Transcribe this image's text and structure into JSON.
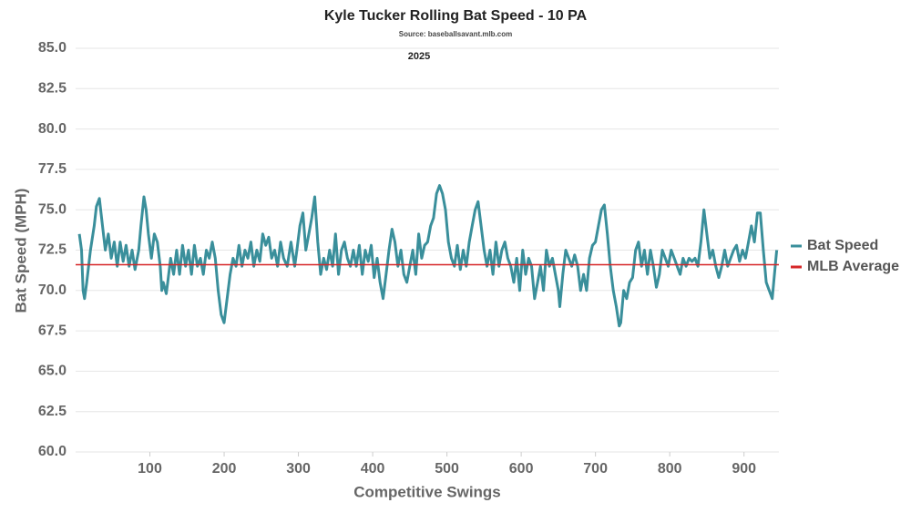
{
  "chart_data": {
    "type": "line",
    "title": "Kyle Tucker Rolling Bat Speed - 10 PA",
    "subtitle": "Source: baseballsavant.mlb.com",
    "annotation": "2025",
    "xlabel": "Competitive Swings",
    "ylabel": "Bat Speed (MPH)",
    "x": [
      5,
      8,
      10,
      12,
      15,
      20,
      25,
      28,
      32,
      35,
      40,
      44,
      48,
      52,
      56,
      60,
      64,
      68,
      72,
      76,
      80,
      85,
      88,
      92,
      95,
      98,
      102,
      106,
      110,
      114,
      116,
      118,
      122,
      124,
      128,
      132,
      136,
      140,
      144,
      148,
      152,
      156,
      160,
      164,
      168,
      172,
      176,
      180,
      184,
      188,
      192,
      196,
      200,
      204,
      208,
      212,
      216,
      220,
      224,
      228,
      232,
      236,
      240,
      244,
      248,
      252,
      256,
      260,
      264,
      268,
      272,
      276,
      280,
      285,
      290,
      295,
      298,
      302,
      306,
      310,
      314,
      318,
      322,
      326,
      330,
      334,
      338,
      342,
      346,
      350,
      354,
      358,
      362,
      366,
      370,
      374,
      378,
      382,
      386,
      390,
      394,
      398,
      402,
      406,
      410,
      414,
      418,
      422,
      426,
      430,
      434,
      438,
      442,
      446,
      450,
      454,
      458,
      462,
      466,
      470,
      474,
      478,
      482,
      486,
      490,
      494,
      498,
      502,
      506,
      510,
      514,
      518,
      522,
      526,
      530,
      534,
      538,
      542,
      546,
      550,
      554,
      558,
      562,
      566,
      570,
      574,
      578,
      582,
      586,
      590,
      594,
      598,
      602,
      606,
      610,
      614,
      618,
      622,
      626,
      630,
      634,
      638,
      642,
      646,
      650,
      652,
      656,
      660,
      664,
      668,
      672,
      676,
      680,
      684,
      688,
      692,
      696,
      700,
      704,
      708,
      712,
      716,
      720,
      724,
      728,
      732,
      734,
      738,
      742,
      746,
      750,
      754,
      758,
      762,
      766,
      770,
      774,
      778,
      782,
      786,
      790,
      794,
      798,
      802,
      806,
      810,
      814,
      818,
      822,
      826,
      830,
      834,
      838,
      842,
      846,
      850,
      854,
      858,
      862,
      866,
      870,
      874,
      878,
      882,
      886,
      890,
      894,
      898,
      902,
      906,
      910,
      914,
      918,
      922,
      926,
      930,
      934,
      938,
      940,
      944
    ],
    "series": [
      {
        "name": "Bat Speed",
        "color": "#3a8f9b",
        "values": [
          73.5,
          72.5,
          70.0,
          69.5,
          70.5,
          72.5,
          74.0,
          75.2,
          75.7,
          74.5,
          72.5,
          73.5,
          72.0,
          73.0,
          71.5,
          73.0,
          71.8,
          72.8,
          71.5,
          72.5,
          71.3,
          72.5,
          74.0,
          75.8,
          75.0,
          73.5,
          72.0,
          73.5,
          73.0,
          71.5,
          70.0,
          70.5,
          69.8,
          70.5,
          72.0,
          71.0,
          72.5,
          71.0,
          72.8,
          71.5,
          72.5,
          71.0,
          72.8,
          71.5,
          72.0,
          71.0,
          72.5,
          72.0,
          73.0,
          72.0,
          70.0,
          68.5,
          68.0,
          69.5,
          71.0,
          72.0,
          71.5,
          72.8,
          71.5,
          72.5,
          72.0,
          73.0,
          71.5,
          72.5,
          71.8,
          73.5,
          72.8,
          73.3,
          72.0,
          72.5,
          71.5,
          73.0,
          72.0,
          71.5,
          73.0,
          71.5,
          72.5,
          74.0,
          74.8,
          72.5,
          73.5,
          74.5,
          75.8,
          73.0,
          71.0,
          72.0,
          71.3,
          72.5,
          71.5,
          73.5,
          71.0,
          72.5,
          73.0,
          72.0,
          71.5,
          72.5,
          71.5,
          72.8,
          71.0,
          72.5,
          71.8,
          72.8,
          70.8,
          72.0,
          70.5,
          69.5,
          71.0,
          72.5,
          73.8,
          73.0,
          71.5,
          72.5,
          71.0,
          70.5,
          71.5,
          72.5,
          71.0,
          73.5,
          72.0,
          72.8,
          73.0,
          74.0,
          74.5,
          76.0,
          76.5,
          76.0,
          75.0,
          73.0,
          72.0,
          71.5,
          72.8,
          71.3,
          72.5,
          71.5,
          73.0,
          74.0,
          75.0,
          75.5,
          74.0,
          72.5,
          71.5,
          72.5,
          71.0,
          73.0,
          71.5,
          72.5,
          73.0,
          72.0,
          71.5,
          70.5,
          72.0,
          70.0,
          72.5,
          71.0,
          72.0,
          71.5,
          69.5,
          70.5,
          71.5,
          70.0,
          72.5,
          71.5,
          72.0,
          71.0,
          70.0,
          69.0,
          71.0,
          72.5,
          72.0,
          71.5,
          72.2,
          71.5,
          70.0,
          71.0,
          70.0,
          72.0,
          72.8,
          73.0,
          74.0,
          75.0,
          75.3,
          73.5,
          71.5,
          70.0,
          69.0,
          67.8,
          68.0,
          70.0,
          69.5,
          70.5,
          70.8,
          72.5,
          73.0,
          71.5,
          72.5,
          71.0,
          72.5,
          71.5,
          70.2,
          71.0,
          72.5,
          72.0,
          71.5,
          72.5,
          72.0,
          71.5,
          71.0,
          72.0,
          71.5,
          72.0,
          71.8,
          72.0,
          71.5,
          73.0,
          75.0,
          73.5,
          72.0,
          72.5,
          71.5,
          70.8,
          71.5,
          72.5,
          71.5,
          72.0,
          72.5,
          72.8,
          71.8,
          72.5,
          72.0,
          73.0,
          74.0,
          73.0,
          74.8,
          74.8,
          72.5,
          70.5,
          70.0,
          69.5,
          70.5,
          72.5
        ]
      }
    ],
    "hlines": [
      {
        "name": "MLB Average",
        "value": 71.6,
        "color": "#d62728"
      }
    ],
    "xlim": [
      0,
      947
    ],
    "xticks": [
      100,
      200,
      300,
      400,
      500,
      600,
      700,
      800,
      900
    ],
    "ylim": [
      60,
      85
    ],
    "yticks": [
      {
        "value": 60,
        "label": "60.0"
      },
      {
        "value": 62.5,
        "label": "62.5"
      },
      {
        "value": 65,
        "label": "65.0"
      },
      {
        "value": 67.5,
        "label": "67.5"
      },
      {
        "value": 70,
        "label": "70.0"
      },
      {
        "value": 72.5,
        "label": "72.5"
      },
      {
        "value": 75,
        "label": "75.0"
      },
      {
        "value": 77.5,
        "label": "77.5"
      },
      {
        "value": 80,
        "label": "80.0"
      },
      {
        "value": 82.5,
        "label": "82.5"
      },
      {
        "value": 85,
        "label": "85.0"
      }
    ],
    "grid": true,
    "legend": "right"
  }
}
